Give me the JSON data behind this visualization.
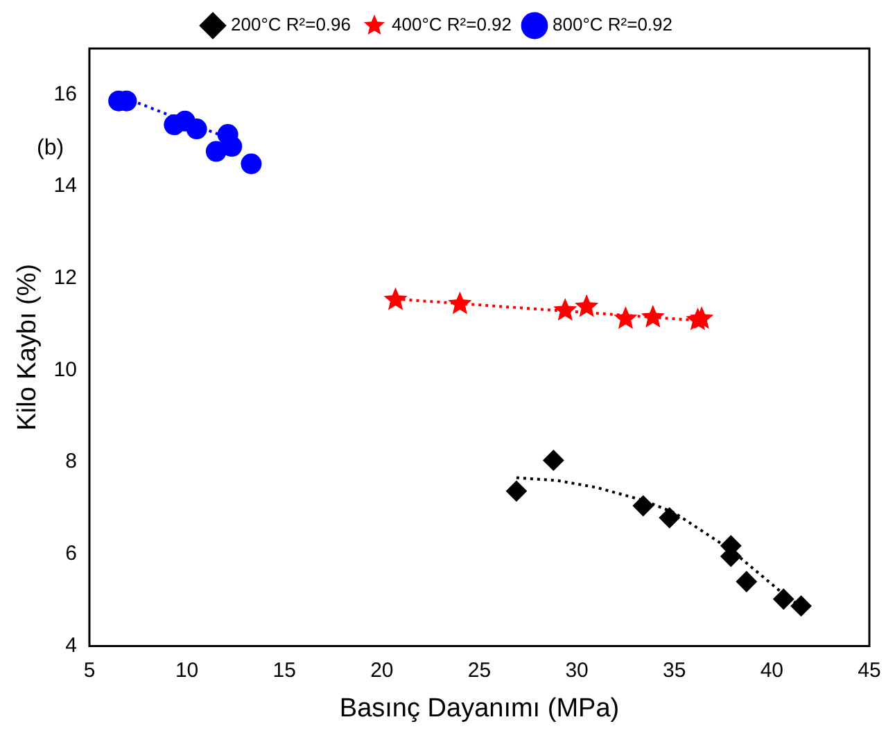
{
  "chart_data": {
    "type": "scatter",
    "xlabel": "Basınç Dayanımı (MPa)",
    "ylabel": "Kilo Kaybı (%)",
    "annotations": [
      "(b)"
    ],
    "xlim": [
      5,
      45
    ],
    "xticks": [
      5,
      10,
      15,
      20,
      25,
      30,
      35,
      40,
      45
    ],
    "ylim": [
      4,
      17
    ],
    "yticks": [
      4,
      6,
      8,
      10,
      12,
      14,
      16
    ],
    "grid": false,
    "legend": "top",
    "series": [
      {
        "name": "200°C R²=0.96",
        "color": "#000000",
        "marker": "diamond",
        "x": [
          26.9,
          28.8,
          33.4,
          34.75,
          37.9,
          37.9,
          38.7,
          40.6,
          41.5
        ],
        "values": [
          7.37,
          8.04,
          7.05,
          6.79,
          6.18,
          5.95,
          5.4,
          5.02,
          4.87
        ]
      },
      {
        "name": "400°C R²=0.92",
        "color": "#ff0000",
        "marker": "star",
        "x": [
          20.7,
          24.0,
          29.4,
          30.5,
          32.5,
          33.9,
          36.2,
          36.4
        ],
        "values": [
          11.53,
          11.44,
          11.3,
          11.38,
          11.12,
          11.15,
          11.09,
          11.12
        ]
      },
      {
        "name": "800°C R²=0.92",
        "color": "#0000ff",
        "marker": "circle",
        "x": [
          6.5,
          6.9,
          9.35,
          9.9,
          10.5,
          12.1,
          12.3,
          11.5,
          13.3
        ],
        "values": [
          15.86,
          15.86,
          15.34,
          15.42,
          15.25,
          15.13,
          14.87,
          14.76,
          14.49
        ]
      },
      {
        "type": "line",
        "color": "#000000",
        "line_style": "dotted",
        "marker": "none",
        "x": [
          26.9,
          29,
          31,
          33.4,
          35,
          37.9,
          40.6,
          41.5
        ],
        "values": [
          7.66,
          7.6,
          7.45,
          7.17,
          6.9,
          6.09,
          5.13,
          4.85
        ]
      },
      {
        "type": "line",
        "color": "#ff0000",
        "line_style": "dotted",
        "marker": "none",
        "x": [
          20.7,
          36.3
        ],
        "values": [
          11.55,
          11.08
        ]
      },
      {
        "type": "line",
        "color": "#0000ff",
        "line_style": "dotted",
        "marker": "none",
        "x": [
          6.5,
          12.6
        ],
        "values": [
          15.98,
          14.97
        ]
      }
    ]
  }
}
